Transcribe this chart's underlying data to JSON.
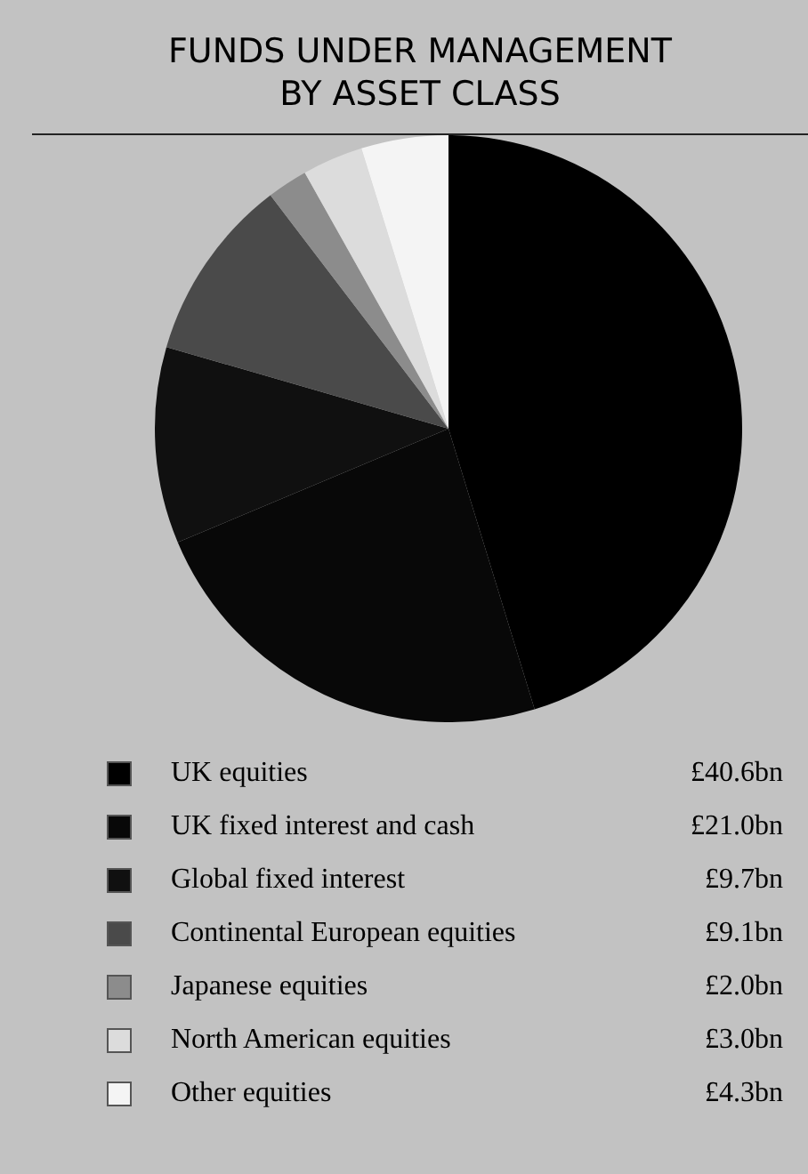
{
  "chart_data": {
    "type": "pie",
    "title": "FUNDS UNDER MANAGEMENT\nBY ASSET CLASS",
    "categories": [
      "UK equities",
      "UK fixed interest and cash",
      "Global fixed interest",
      "Continental European equities",
      "Japanese equities",
      "North American equities",
      "Other equities"
    ],
    "values": [
      40.6,
      21.0,
      9.7,
      9.1,
      2.0,
      3.0,
      4.3
    ],
    "value_labels": [
      "£40.6bn",
      "£21.0bn",
      "£9.7bn",
      "£9.1bn",
      "£2.0bn",
      "£3.0bn",
      "£4.3bn"
    ],
    "colors": [
      "#000000",
      "#080808",
      "#101010",
      "#4a4a4a",
      "#8c8c8c",
      "#dcdcdc",
      "#f4f4f4"
    ],
    "legend": "bottom"
  }
}
